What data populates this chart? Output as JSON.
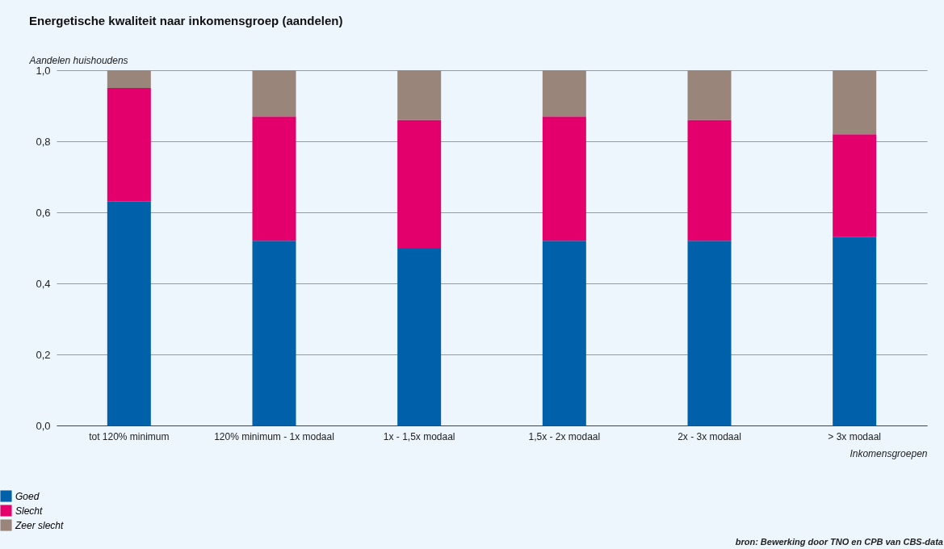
{
  "chart_data": {
    "type": "bar",
    "stacked": true,
    "title": "Energetische kwaliteit naar inkomensgroep (aandelen)",
    "ylabel": "Aandelen huishoudens",
    "xlabel": "Inkomensgroepen",
    "categories": [
      "tot 120% minimum",
      "120% minimum - 1x modaal",
      "1x - 1,5x modaal",
      "1,5x - 2x modaal",
      "2x - 3x modaal",
      "> 3x modaal"
    ],
    "series": [
      {
        "name": "Goed",
        "color": "#0061ab",
        "values": [
          0.63,
          0.52,
          0.5,
          0.52,
          0.52,
          0.53
        ]
      },
      {
        "name": "Slecht",
        "color": "#e3006c",
        "values": [
          0.32,
          0.35,
          0.36,
          0.35,
          0.34,
          0.29
        ]
      },
      {
        "name": "Zeer slecht",
        "color": "#9a857b",
        "values": [
          0.05,
          0.13,
          0.14,
          0.13,
          0.14,
          0.18
        ]
      }
    ],
    "ylim": [
      0,
      1
    ],
    "yticks": [
      {
        "value": 0,
        "label": "0,0"
      },
      {
        "value": 0.2,
        "label": "0,2"
      },
      {
        "value": 0.4,
        "label": "0,4"
      },
      {
        "value": 0.6,
        "label": "0,6"
      },
      {
        "value": 0.8,
        "label": "0,8"
      },
      {
        "value": 1,
        "label": "1,0"
      }
    ],
    "grid": "y",
    "legend": "bottom left",
    "annotations": [
      "bron: Bewerking door TNO en CPB van CBS-data"
    ]
  }
}
